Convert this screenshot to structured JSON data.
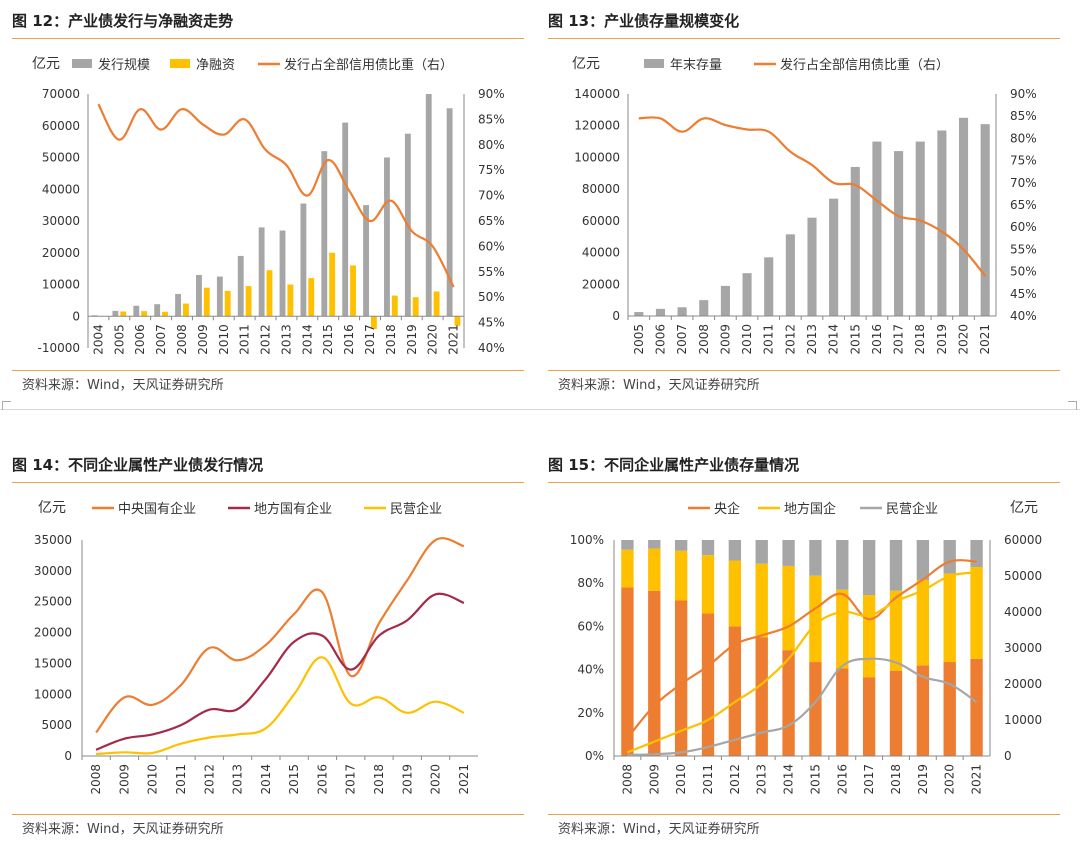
{
  "colors": {
    "gray": "#A6A6A6",
    "gold": "#FFC000",
    "orange": "#ED7D31",
    "darkred": "#A52A4A",
    "yellow": "#FFC000",
    "rule": "#E8A44C"
  },
  "charts": [
    {
      "title": "图 12：产业债发行与净融资走势",
      "source": "资料来源：Wind，天风证券研究所",
      "unit_left": "亿元",
      "legend": [
        "发行规模",
        "净融资",
        "发行占全部信用债比重（右）"
      ],
      "chart_data": {
        "type": "bar",
        "categories": [
          "2004",
          "2005",
          "2006",
          "2007",
          "2008",
          "2009",
          "2010",
          "2011",
          "2012",
          "2013",
          "2014",
          "2015",
          "2016",
          "2017",
          "2018",
          "2019",
          "2020",
          "2021"
        ],
        "series": [
          {
            "name": "发行规模",
            "type": "bar",
            "axis": "left",
            "values": [
              300,
              1700,
              3300,
              3800,
              7000,
              13000,
              12500,
              19000,
              28000,
              27000,
              35500,
              52000,
              61000,
              35000,
              50000,
              57500,
              70000,
              65500
            ]
          },
          {
            "name": "净融资",
            "type": "bar",
            "axis": "left",
            "values": [
              0,
              1500,
              1600,
              1400,
              4000,
              9000,
              8000,
              9500,
              14500,
              10000,
              12000,
              20000,
              16000,
              -4000,
              6500,
              6000,
              7800,
              -3000
            ]
          },
          {
            "name": "发行占全部信用债比重（右）",
            "type": "line",
            "axis": "right",
            "values": [
              88,
              81,
              87,
              83,
              87,
              84,
              82,
              85,
              79,
              76,
              70,
              77,
              71,
              65,
              69,
              63,
              60,
              52
            ]
          }
        ],
        "ylim_left": [
          -10000,
          70000
        ],
        "yticks_left": [
          -10000,
          0,
          10000,
          20000,
          30000,
          40000,
          50000,
          60000,
          70000
        ],
        "ylim_right": [
          40,
          90
        ],
        "yticks_right": [
          40,
          45,
          50,
          55,
          60,
          65,
          70,
          75,
          80,
          85,
          90
        ]
      }
    },
    {
      "title": "图 13：产业债存量规模变化",
      "source": "资料来源：Wind，天风证券研究所",
      "unit_left": "亿元",
      "legend": [
        "年末存量",
        "发行占全部信用债比重（右）"
      ],
      "chart_data": {
        "type": "bar",
        "categories": [
          "2005",
          "2006",
          "2007",
          "2008",
          "2009",
          "2010",
          "2011",
          "2012",
          "2013",
          "2014",
          "2015",
          "2016",
          "2017",
          "2018",
          "2019",
          "2020",
          "2021"
        ],
        "series": [
          {
            "name": "年末存量",
            "type": "bar",
            "axis": "left",
            "values": [
              2500,
              4500,
              5500,
              10000,
              19000,
              27000,
              37000,
              51500,
              62000,
              74000,
              94000,
              110000,
              104000,
              110000,
              117000,
              125000,
              121000
            ]
          },
          {
            "name": "发行占全部信用债比重（右）",
            "type": "line",
            "axis": "right",
            "values": [
              84.5,
              84.5,
              81.5,
              84.5,
              83,
              82,
              81.5,
              77,
              74,
              70,
              69.5,
              66,
              62.5,
              61.5,
              59,
              55,
              49
            ]
          }
        ],
        "ylim_left": [
          0,
          140000
        ],
        "yticks_left": [
          0,
          20000,
          40000,
          60000,
          80000,
          100000,
          120000,
          140000
        ],
        "ylim_right": [
          40,
          90
        ],
        "yticks_right": [
          40,
          45,
          50,
          55,
          60,
          65,
          70,
          75,
          80,
          85,
          90
        ]
      }
    },
    {
      "title": "图 14：不同企业属性产业债发行情况",
      "source": "资料来源：Wind，天风证券研究所",
      "unit_left": "亿元",
      "legend": [
        "中央国有企业",
        "地方国有企业",
        "民营企业"
      ],
      "chart_data": {
        "type": "line",
        "categories": [
          "2008",
          "2009",
          "2010",
          "2011",
          "2012",
          "2013",
          "2014",
          "2015",
          "2016",
          "2017",
          "2018",
          "2019",
          "2020",
          "2021"
        ],
        "series": [
          {
            "name": "中央国有企业",
            "values": [
              3800,
              9500,
              8300,
              11500,
              17500,
              15500,
              18000,
              23000,
              26500,
              13000,
              21500,
              28500,
              35000,
              34000
            ]
          },
          {
            "name": "地方国有企业",
            "values": [
              1000,
              2800,
              3500,
              5000,
              7500,
              7600,
              12500,
              18500,
              19500,
              14000,
              19500,
              22000,
              26200,
              24800
            ]
          },
          {
            "name": "民营企业",
            "values": [
              300,
              600,
              500,
              2000,
              3000,
              3500,
              4500,
              10000,
              16000,
              8500,
              9500,
              7000,
              8800,
              7000
            ]
          }
        ],
        "ylim": [
          0,
          35000
        ],
        "yticks": [
          0,
          5000,
          10000,
          15000,
          20000,
          25000,
          30000,
          35000
        ]
      }
    },
    {
      "title": "图 15：不同企业属性产业债存量情况",
      "source": "资料来源：Wind，天风证券研究所",
      "unit_left": "",
      "unit_right": "亿元",
      "legend": [
        "央企",
        "地方国企",
        "民营企业"
      ],
      "chart_data": {
        "type": "bar",
        "categories": [
          "2008",
          "2009",
          "2010",
          "2011",
          "2012",
          "2013",
          "2014",
          "2015",
          "2016",
          "2017",
          "2018",
          "2019",
          "2020",
          "2021"
        ],
        "stacked_percent": [
          {
            "name": "央企",
            "values": [
              78,
              76.5,
              72,
              66,
              60,
              55,
              49,
              43.5,
              40.5,
              36.5,
              39.5,
              42,
              43.5,
              45
            ]
          },
          {
            "name": "地方国企",
            "values": [
              17.5,
              19.5,
              23,
              27,
              30.5,
              34,
              39,
              40,
              36.5,
              38,
              37,
              39.5,
              41,
              42.5
            ]
          },
          {
            "name": "民营企业",
            "values": [
              4.5,
              4,
              5,
              7,
              9.5,
              11,
              12,
              16.5,
              23,
              25.5,
              23.5,
              18.5,
              15.5,
              12.5
            ]
          }
        ],
        "lines": [
          {
            "name": "央企",
            "values": [
              5000,
              14000,
              20000,
              25000,
              31000,
              33500,
              36000,
              41000,
              45000,
              38000,
              44000,
              49000,
              54000,
              54000
            ]
          },
          {
            "name": "地方国企",
            "values": [
              1000,
              4000,
              7000,
              10000,
              15000,
              20000,
              27000,
              36500,
              40000,
              39000,
              43000,
              46000,
              50000,
              51000
            ]
          },
          {
            "name": "民营企业",
            "values": [
              300,
              500,
              1000,
              2500,
              4500,
              6500,
              8500,
              15000,
              25000,
              27000,
              26000,
              22000,
              20000,
              15000
            ]
          }
        ],
        "ylim_left": [
          0,
          100
        ],
        "yticks_left": [
          "0%",
          "20%",
          "40%",
          "60%",
          "80%",
          "100%"
        ],
        "ylim_right": [
          0,
          60000
        ],
        "yticks_right": [
          0,
          10000,
          20000,
          30000,
          40000,
          50000,
          60000
        ]
      }
    }
  ]
}
